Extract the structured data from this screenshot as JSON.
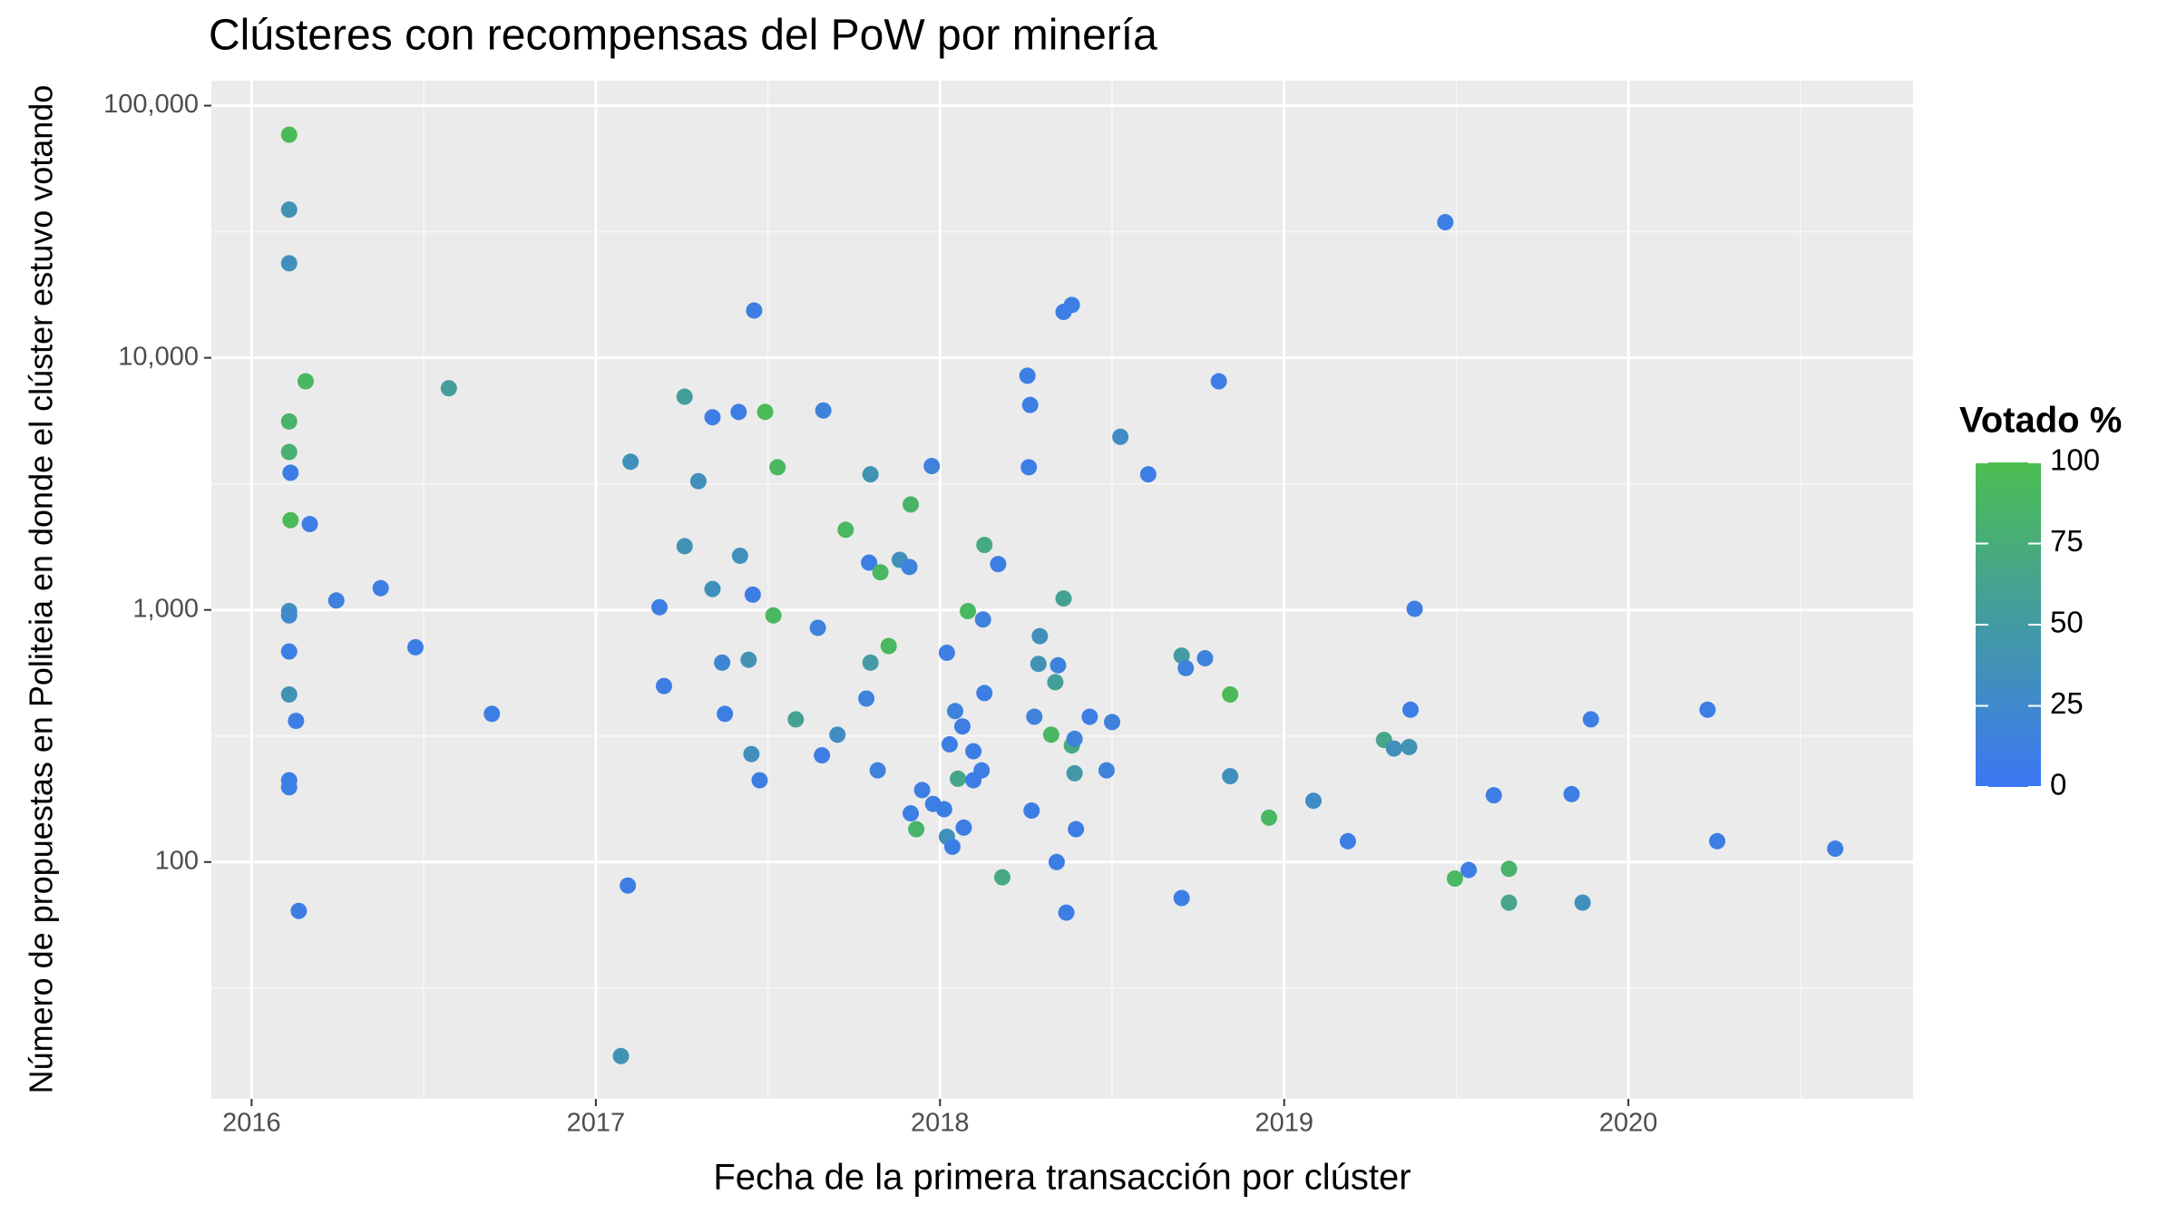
{
  "chart_data": {
    "type": "scatter",
    "title": "Clústeres con recompensas del PoW por minería",
    "x_label": "Fecha de la primera transacción por clúster",
    "y_label": "Número de propuestas en Politeia en donde el clúster estuvo votando",
    "x": [
      2016.109,
      2016.109,
      2016.109,
      2016.157,
      2016.109,
      2016.109,
      2016.113,
      2016.113,
      2016.169,
      2016.246,
      2016.375,
      2016.109,
      2016.109,
      2016.109,
      2016.476,
      2016.109,
      2016.129,
      2016.698,
      2016.109,
      2016.109,
      2016.137,
      2016.573,
      2017.101,
      2017.258,
      2017.339,
      2017.415,
      2017.492,
      2017.46,
      2017.298,
      2017.528,
      2017.661,
      2017.798,
      2017.976,
      2017.915,
      2017.726,
      2017.258,
      2017.419,
      2017.339,
      2017.456,
      2017.185,
      2017.516,
      2017.367,
      2017.444,
      2017.645,
      2017.198,
      2017.375,
      2017.581,
      2017.702,
      2017.452,
      2017.657,
      2017.476,
      2017.093,
      2017.073,
      2017.794,
      2017.827,
      2017.883,
      2017.911,
      2017.798,
      2017.851,
      2017.786,
      2017.819,
      2017.948,
      2017.98,
      2017.915,
      2017.931,
      2018.012,
      2018.02,
      2018.036,
      2018.069,
      2018.02,
      2018.028,
      2018.044,
      2018.065,
      2018.097,
      2018.052,
      2018.097,
      2018.121,
      2018.081,
      2018.125,
      2018.129,
      2018.169,
      2018.129,
      2018.181,
      2018.254,
      2018.262,
      2018.258,
      2018.359,
      2018.383,
      2018.524,
      2018.605,
      2018.81,
      2018.359,
      2018.29,
      2018.286,
      2018.343,
      2018.335,
      2018.274,
      2018.323,
      2018.383,
      2018.391,
      2018.435,
      2018.5,
      2018.391,
      2018.484,
      2018.266,
      2018.395,
      2018.339,
      2018.367,
      2018.702,
      2018.714,
      2018.77,
      2018.843,
      2018.843,
      2018.702,
      2018.956,
      2019.085,
      2019.185,
      2019.29,
      2019.319,
      2019.363,
      2019.367,
      2019.379,
      2019.468,
      2019.496,
      2019.536,
      2019.609,
      2019.653,
      2019.653,
      2019.835,
      2019.867,
      2019.891,
      2020.23,
      2020.258,
      2020.601
    ],
    "values": [
      76700,
      38700,
      23700,
      8070,
      5590,
      4230,
      3500,
      2270,
      2190,
      1090,
      1220,
      990,
      951,
      684,
      711,
      462,
      363,
      387,
      211,
      198,
      64,
      7570,
      3870,
      7010,
      5810,
      6100,
      6100,
      15400,
      3240,
      3680,
      6180,
      3450,
      3720,
      2620,
      2080,
      1790,
      1640,
      1210,
      1150,
      1025,
      951,
      618,
      634,
      849,
      499,
      387,
      368,
      320,
      268,
      265,
      211,
      80.7,
      17,
      1540,
      1410,
      1580,
      1480,
      618,
      719,
      445,
      231,
      193,
      170,
      156,
      135,
      162,
      126,
      115,
      137,
      676,
      293,
      397,
      345,
      275,
      214,
      211,
      231,
      989,
      916,
      1810,
      1520,
      468,
      87,
      8490,
      6500,
      3680,
      15200,
      16200,
      4860,
      3450,
      8070,
      1110,
      787,
      611,
      603,
      517,
      377,
      320,
      290,
      308,
      377,
      359,
      225,
      231,
      160,
      135,
      100,
      63,
      659,
      588,
      643,
      462,
      219,
      72,
      150,
      175,
      121,
      305,
      282,
      286,
      402,
      1010,
      34500,
      86,
      93,
      184,
      94,
      69,
      186,
      69,
      368,
      402,
      121,
      113
    ],
    "color_values": [
      95,
      40,
      35,
      90,
      85,
      80,
      10,
      95,
      10,
      15,
      10,
      35,
      25,
      10,
      10,
      40,
      10,
      10,
      10,
      10,
      10,
      55,
      35,
      55,
      10,
      10,
      95,
      10,
      35,
      90,
      15,
      40,
      15,
      85,
      90,
      40,
      35,
      35,
      10,
      10,
      90,
      20,
      40,
      15,
      10,
      10,
      60,
      30,
      35,
      10,
      10,
      10,
      40,
      10,
      90,
      35,
      15,
      50,
      90,
      15,
      15,
      10,
      10,
      10,
      85,
      10,
      35,
      10,
      10,
      10,
      10,
      15,
      10,
      10,
      65,
      10,
      10,
      90,
      15,
      70,
      10,
      10,
      70,
      10,
      10,
      10,
      10,
      10,
      30,
      10,
      10,
      60,
      35,
      40,
      15,
      55,
      15,
      90,
      70,
      15,
      10,
      15,
      45,
      15,
      10,
      10,
      10,
      10,
      50,
      15,
      15,
      95,
      35,
      10,
      90,
      30,
      10,
      65,
      35,
      40,
      10,
      10,
      10,
      90,
      10,
      10,
      85,
      65,
      10,
      35,
      10,
      10,
      10,
      10
    ],
    "xlim": [
      2015.883,
      2020.827
    ],
    "xticks": [
      2016,
      2017,
      2018,
      2019,
      2020
    ],
    "ylim": [
      11.5,
      125600
    ],
    "yticks": [
      100,
      {
        "value": 1000,
        "label": "1,000"
      },
      {
        "value": 10000,
        "label": "10,000"
      },
      {
        "value": 100000,
        "label": "100,000"
      }
    ],
    "log_y": true,
    "grid": true,
    "colorbar": {
      "title": "Votado %",
      "lim": [
        0,
        100
      ],
      "ticks": [
        0,
        25,
        50,
        75,
        100
      ],
      "colors": [
        "#3b77f5",
        "#4cbe50"
      ]
    }
  }
}
